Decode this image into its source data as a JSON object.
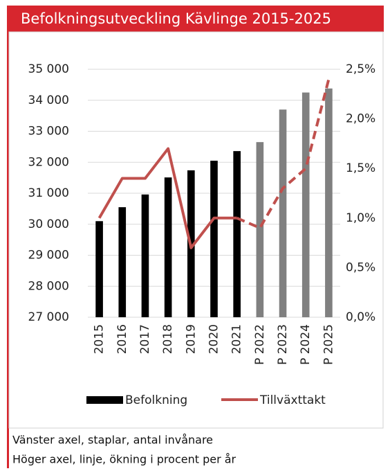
{
  "chart_data": {
    "type": "bar-line",
    "title": "Befolkningsutveckling Kävlinge 2015-2025",
    "categories": [
      "2015",
      "2016",
      "2017",
      "2018",
      "2019",
      "2020",
      "2021",
      "P 2022",
      "P 2023",
      "P 2024",
      "P 2025"
    ],
    "series": [
      {
        "name": "Befolkning",
        "type": "bar",
        "color": "#000000",
        "projected_color": "#808080",
        "values": [
          30100,
          30550,
          30960,
          31510,
          31740,
          32050,
          32360,
          32650,
          33700,
          34250,
          34380
        ]
      },
      {
        "name": "Tillväxttakt",
        "type": "line",
        "axis": "y2",
        "color": "#c0504d",
        "values": [
          1.0,
          1.4,
          1.4,
          1.7,
          0.7,
          1.0,
          1.0,
          0.9,
          1.3,
          1.5,
          2.4
        ]
      }
    ],
    "projected_from": 7,
    "ylim": [
      27000,
      35000
    ],
    "yticks": [
      {
        "value": 27000,
        "label": "27 000"
      },
      {
        "value": 28000,
        "label": "28 000"
      },
      {
        "value": 29000,
        "label": "29 000"
      },
      {
        "value": 30000,
        "label": "30 000"
      },
      {
        "value": 31000,
        "label": "31 000"
      },
      {
        "value": 32000,
        "label": "32 000"
      },
      {
        "value": 33000,
        "label": "33 000"
      },
      {
        "value": 34000,
        "label": "34 000"
      },
      {
        "value": 35000,
        "label": "35 000"
      }
    ],
    "y2lim": [
      0,
      2.5
    ],
    "y2ticks": [
      {
        "value": 0,
        "label": "0,0%"
      },
      {
        "value": 0.5,
        "label": "0,5%"
      },
      {
        "value": 1.0,
        "label": "1,0%"
      },
      {
        "value": 1.5,
        "label": "1,5%"
      },
      {
        "value": 2.0,
        "label": "2,0%"
      },
      {
        "value": 2.5,
        "label": "2,5%"
      }
    ],
    "grid": true,
    "legend": "bottom",
    "notes": [
      "Vänster axel, staplar, antal invånare",
      "Höger axel, linje, ökning i procent per år"
    ]
  }
}
